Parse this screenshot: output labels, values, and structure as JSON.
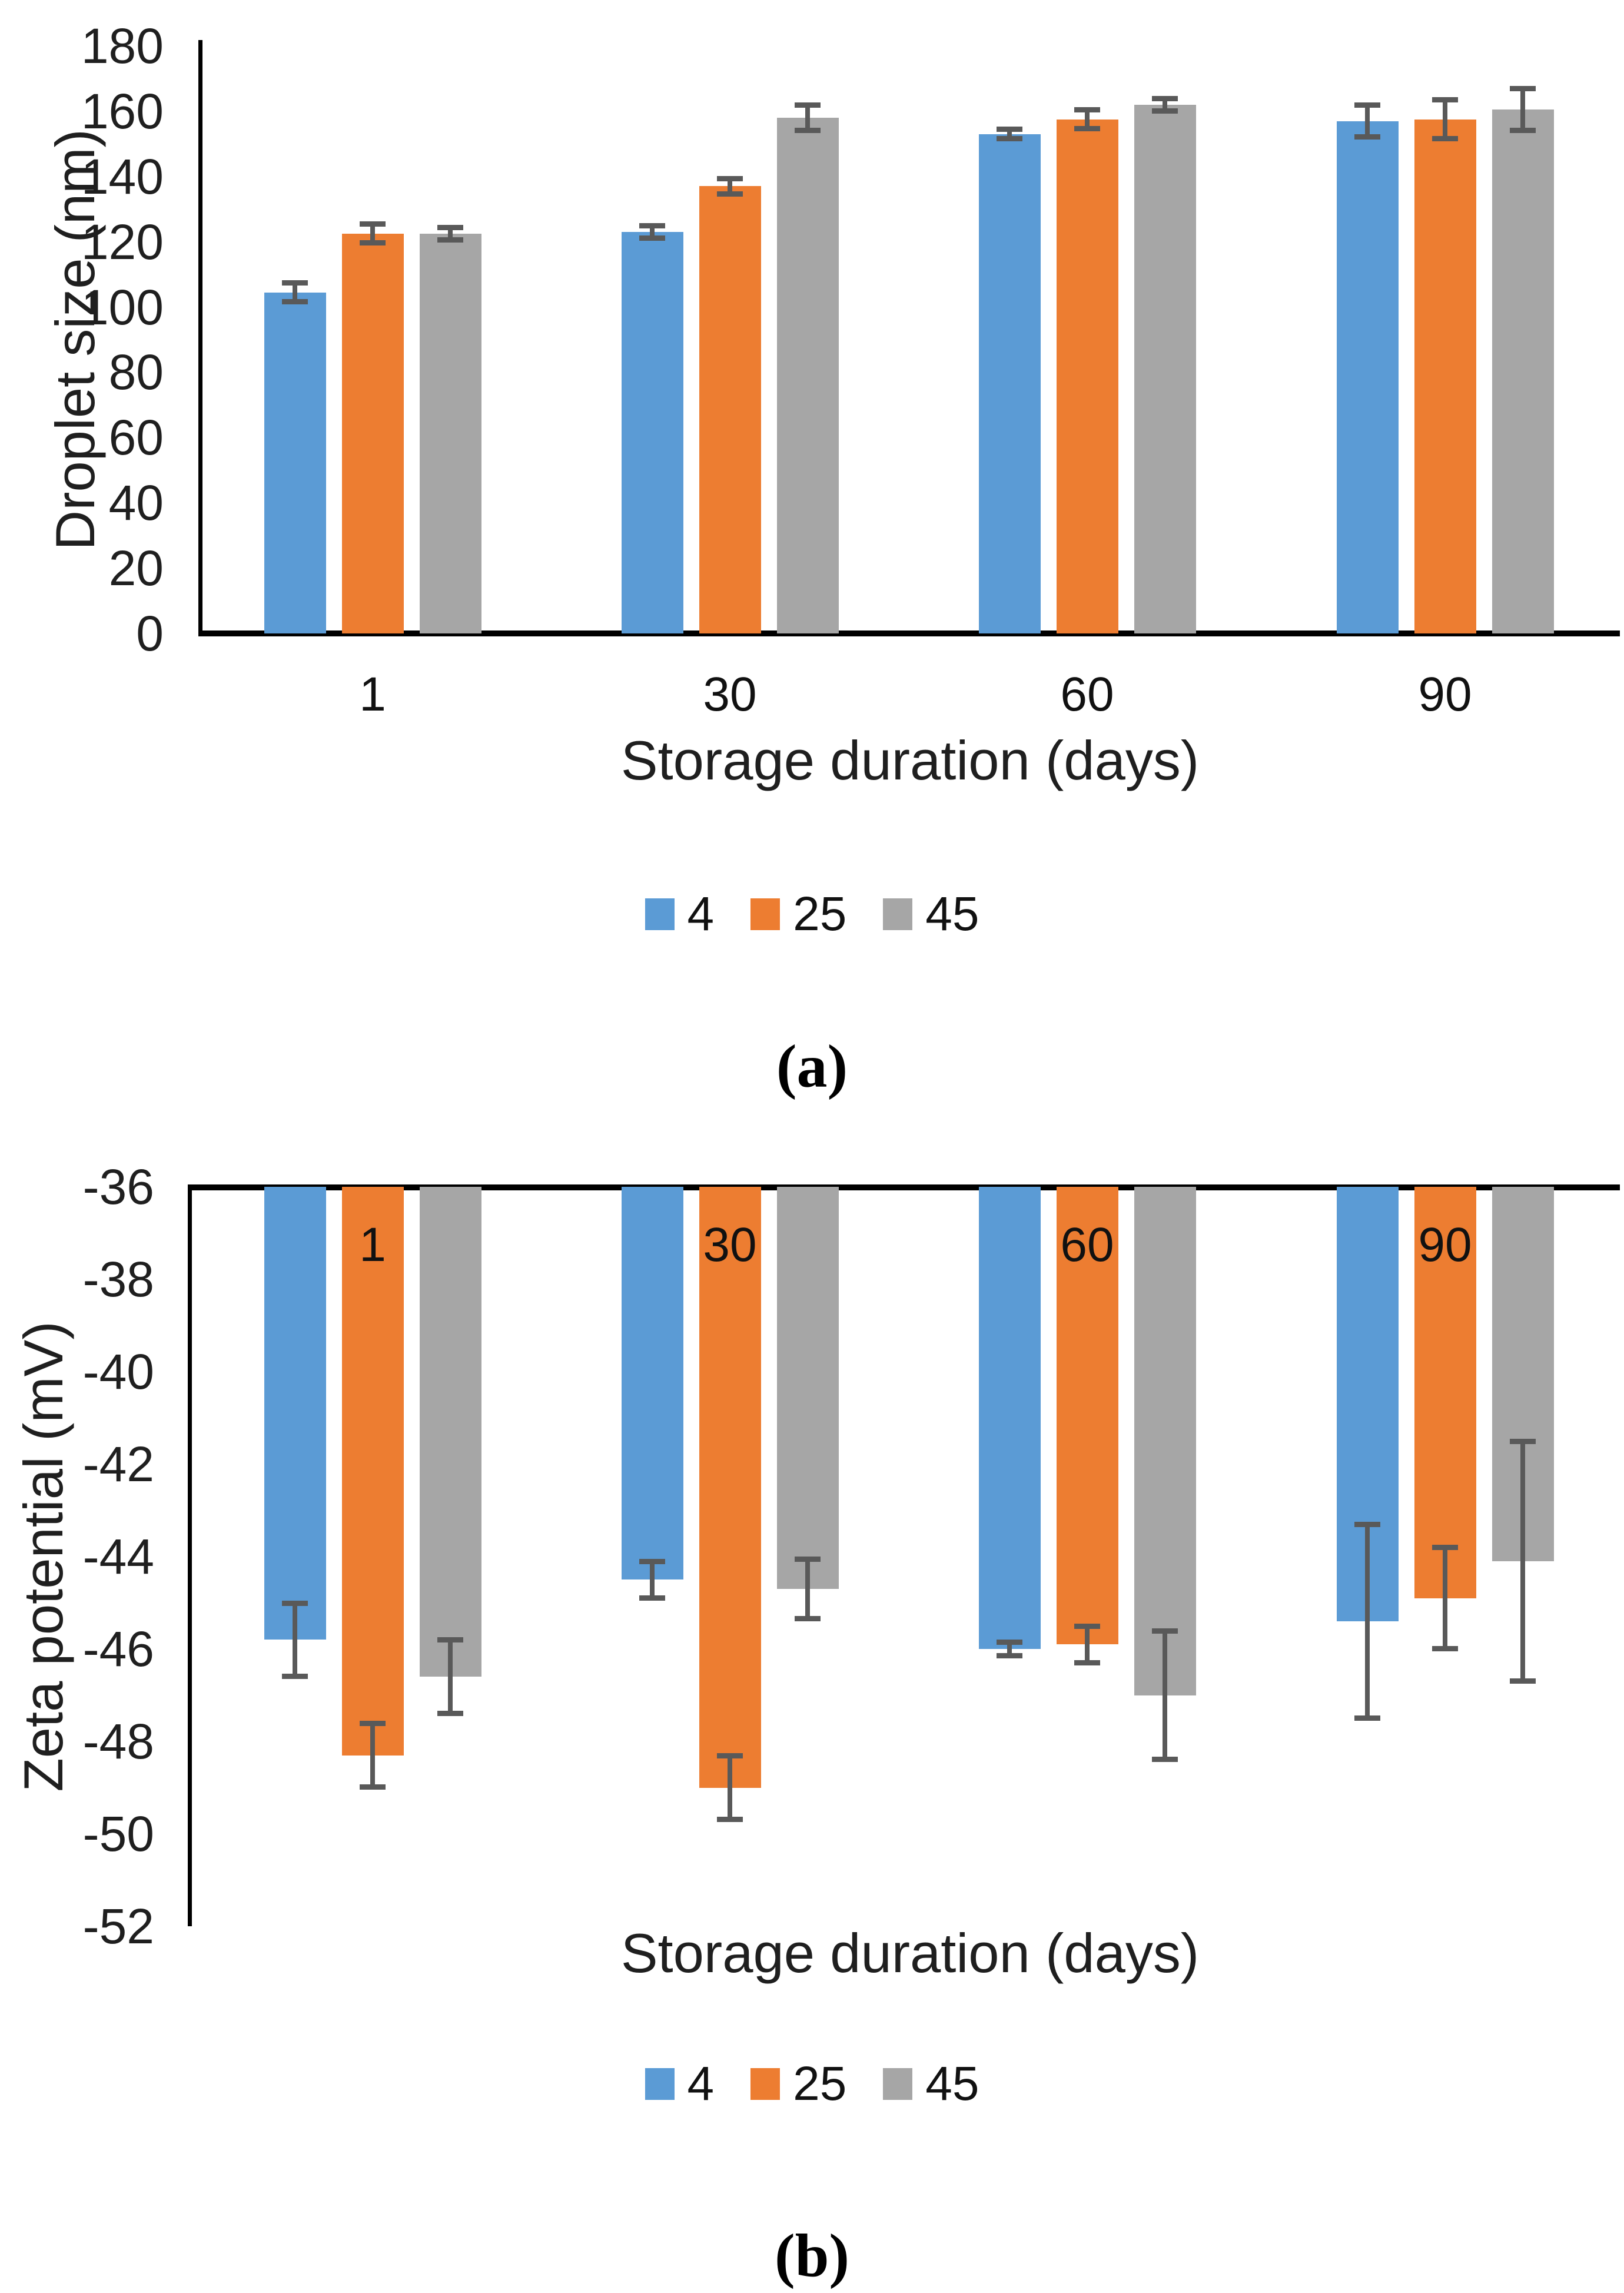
{
  "figure": {
    "panels": [
      {
        "label": "(a)"
      },
      {
        "label": "(b)"
      }
    ]
  },
  "colors": {
    "series_blue": "#5B9BD5",
    "series_orange": "#ED7D31",
    "series_gray": "#A6A6A6",
    "error_bar": "#595959",
    "axis_line": "#000000",
    "text": "#1f1f1f"
  },
  "chart_data": [
    {
      "type": "bar",
      "panel_label": "(a)",
      "categories": [
        "1",
        "30",
        "60",
        "90"
      ],
      "series": [
        {
          "name": "4",
          "color_key": "series_blue",
          "values": [
            104.5,
            123,
            153,
            157
          ],
          "errors": [
            3,
            2,
            1.5,
            5
          ]
        },
        {
          "name": "25",
          "color_key": "series_orange",
          "values": [
            122.5,
            137,
            157.5,
            157.5
          ],
          "errors": [
            3,
            2.5,
            3,
            6
          ]
        },
        {
          "name": "45",
          "color_key": "series_gray",
          "values": [
            122.5,
            158,
            162,
            160.5
          ],
          "errors": [
            2,
            4,
            2,
            6.5
          ]
        }
      ],
      "xlabel": "Storage duration (days)",
      "ylabel": "Droplet size (nm)",
      "ylim": [
        0,
        180
      ],
      "ytick_step": 20,
      "grid": false,
      "legend_position": "bottom",
      "category_labels_inside": false
    },
    {
      "type": "bar",
      "panel_label": "(b)",
      "categories": [
        "1",
        "30",
        "60",
        "90"
      ],
      "series": [
        {
          "name": "4",
          "color_key": "series_blue",
          "values": [
            -45.8,
            -44.5,
            -46.0,
            -45.4
          ],
          "errors": [
            0.8,
            0.4,
            0.15,
            2.1
          ]
        },
        {
          "name": "25",
          "color_key": "series_orange",
          "values": [
            -48.3,
            -49.0,
            -45.9,
            -44.9
          ],
          "errors": [
            0.7,
            0.7,
            0.4,
            1.1
          ]
        },
        {
          "name": "45",
          "color_key": "series_gray",
          "values": [
            -46.6,
            -44.7,
            -47.0,
            -44.1
          ],
          "errors": [
            0.8,
            0.65,
            1.4,
            2.6
          ]
        }
      ],
      "xlabel": "Storage duration (days)",
      "ylabel": "Zeta potential (mV)",
      "ylim": [
        -52,
        -36
      ],
      "ytick_step": 2,
      "grid": false,
      "legend_position": "bottom",
      "category_labels_inside": true
    }
  ]
}
